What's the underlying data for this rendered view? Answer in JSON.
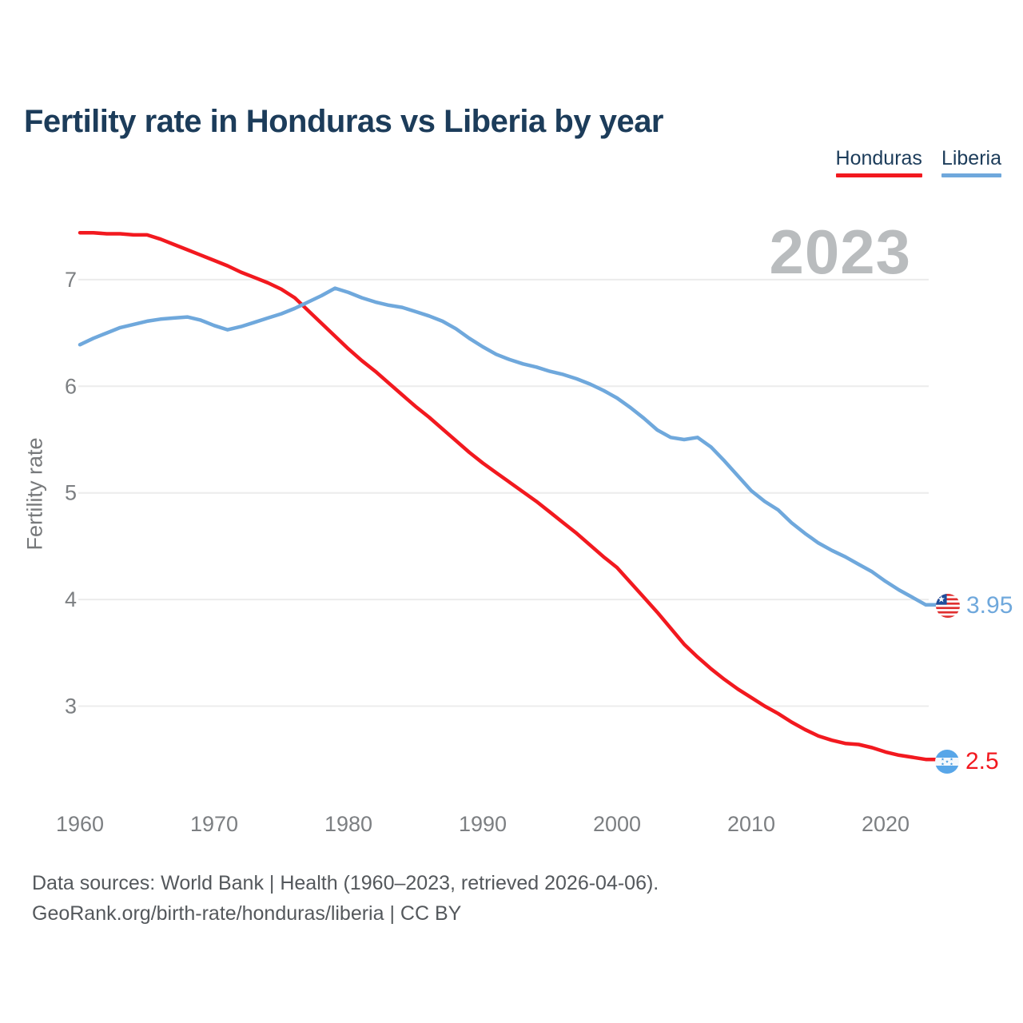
{
  "title": "Fertility rate in Honduras vs Liberia by year",
  "watermark": "2023",
  "legend": [
    {
      "label": "Honduras",
      "color": "#f2191f"
    },
    {
      "label": "Liberia",
      "color": "#6fa8dc"
    }
  ],
  "y_axis": {
    "label": "Fertility rate",
    "ticks": [
      7,
      6,
      5,
      4,
      3
    ]
  },
  "x_axis": {
    "ticks": [
      1960,
      1970,
      1980,
      1990,
      2000,
      2010,
      2020
    ]
  },
  "end_labels": [
    {
      "series": "Liberia",
      "value": "3.95",
      "color": "#6fa8dc",
      "flag": "liberia-flag"
    },
    {
      "series": "Honduras",
      "value": "2.5",
      "color": "#f2191f",
      "flag": "honduras-flag"
    }
  ],
  "footer": {
    "line1": "Data sources: World Bank | Health (1960–2023, retrieved 2026-04-06).",
    "line2": "GeoRank.org/birth-rate/honduras/liberia | CC BY"
  },
  "colors": {
    "honduras_line": "#f2191f",
    "liberia_line": "#6fa8dc",
    "title_text": "#1c3c5a",
    "tick_text": "#7c7f82",
    "gridline": "#ececec",
    "watermark_text": "#b9bcbe",
    "footer_text": "#54585c"
  },
  "chart_data": {
    "type": "line",
    "title": "Fertility rate in Honduras vs Liberia by year",
    "xlabel": "",
    "ylabel": "Fertility rate",
    "x_range": [
      1960,
      2023
    ],
    "ylim": [
      2.4,
      7.8
    ],
    "y_ticks": [
      3,
      4,
      5,
      6,
      7
    ],
    "x_ticks": [
      1960,
      1970,
      1980,
      1990,
      2000,
      2010,
      2020
    ],
    "grid": "horizontal",
    "legend_position": "top-right",
    "x": [
      1960,
      1961,
      1962,
      1963,
      1964,
      1965,
      1966,
      1967,
      1968,
      1969,
      1970,
      1971,
      1972,
      1973,
      1974,
      1975,
      1976,
      1977,
      1978,
      1979,
      1980,
      1981,
      1982,
      1983,
      1984,
      1985,
      1986,
      1987,
      1988,
      1989,
      1990,
      1991,
      1992,
      1993,
      1994,
      1995,
      1996,
      1997,
      1998,
      1999,
      2000,
      2001,
      2002,
      2003,
      2004,
      2005,
      2006,
      2007,
      2008,
      2009,
      2010,
      2011,
      2012,
      2013,
      2014,
      2015,
      2016,
      2017,
      2018,
      2019,
      2020,
      2021,
      2022,
      2023
    ],
    "series": [
      {
        "name": "Honduras",
        "color": "#f2191f",
        "end_value": 2.5,
        "values": [
          7.44,
          7.44,
          7.43,
          7.43,
          7.42,
          7.42,
          7.38,
          7.33,
          7.28,
          7.23,
          7.18,
          7.13,
          7.07,
          7.02,
          6.97,
          6.91,
          6.83,
          6.71,
          6.59,
          6.47,
          6.35,
          6.24,
          6.14,
          6.03,
          5.92,
          5.81,
          5.71,
          5.6,
          5.49,
          5.38,
          5.28,
          5.19,
          5.1,
          5.01,
          4.92,
          4.82,
          4.72,
          4.62,
          4.51,
          4.4,
          4.3,
          4.16,
          4.02,
          3.88,
          3.73,
          3.58,
          3.46,
          3.35,
          3.25,
          3.16,
          3.08,
          3.0,
          2.93,
          2.85,
          2.78,
          2.72,
          2.68,
          2.65,
          2.64,
          2.61,
          2.57,
          2.54,
          2.52,
          2.5
        ]
      },
      {
        "name": "Liberia",
        "color": "#6fa8dc",
        "end_value": 3.95,
        "values": [
          6.39,
          6.45,
          6.5,
          6.55,
          6.58,
          6.61,
          6.63,
          6.64,
          6.65,
          6.62,
          6.57,
          6.53,
          6.56,
          6.6,
          6.64,
          6.68,
          6.73,
          6.79,
          6.85,
          6.92,
          6.88,
          6.83,
          6.79,
          6.76,
          6.74,
          6.7,
          6.66,
          6.61,
          6.54,
          6.45,
          6.37,
          6.3,
          6.25,
          6.21,
          6.18,
          6.14,
          6.11,
          6.07,
          6.02,
          5.96,
          5.89,
          5.8,
          5.7,
          5.59,
          5.52,
          5.5,
          5.52,
          5.43,
          5.3,
          5.16,
          5.02,
          4.92,
          4.84,
          4.72,
          4.62,
          4.53,
          4.46,
          4.4,
          4.33,
          4.26,
          4.17,
          4.09,
          4.02,
          3.95
        ]
      }
    ]
  }
}
